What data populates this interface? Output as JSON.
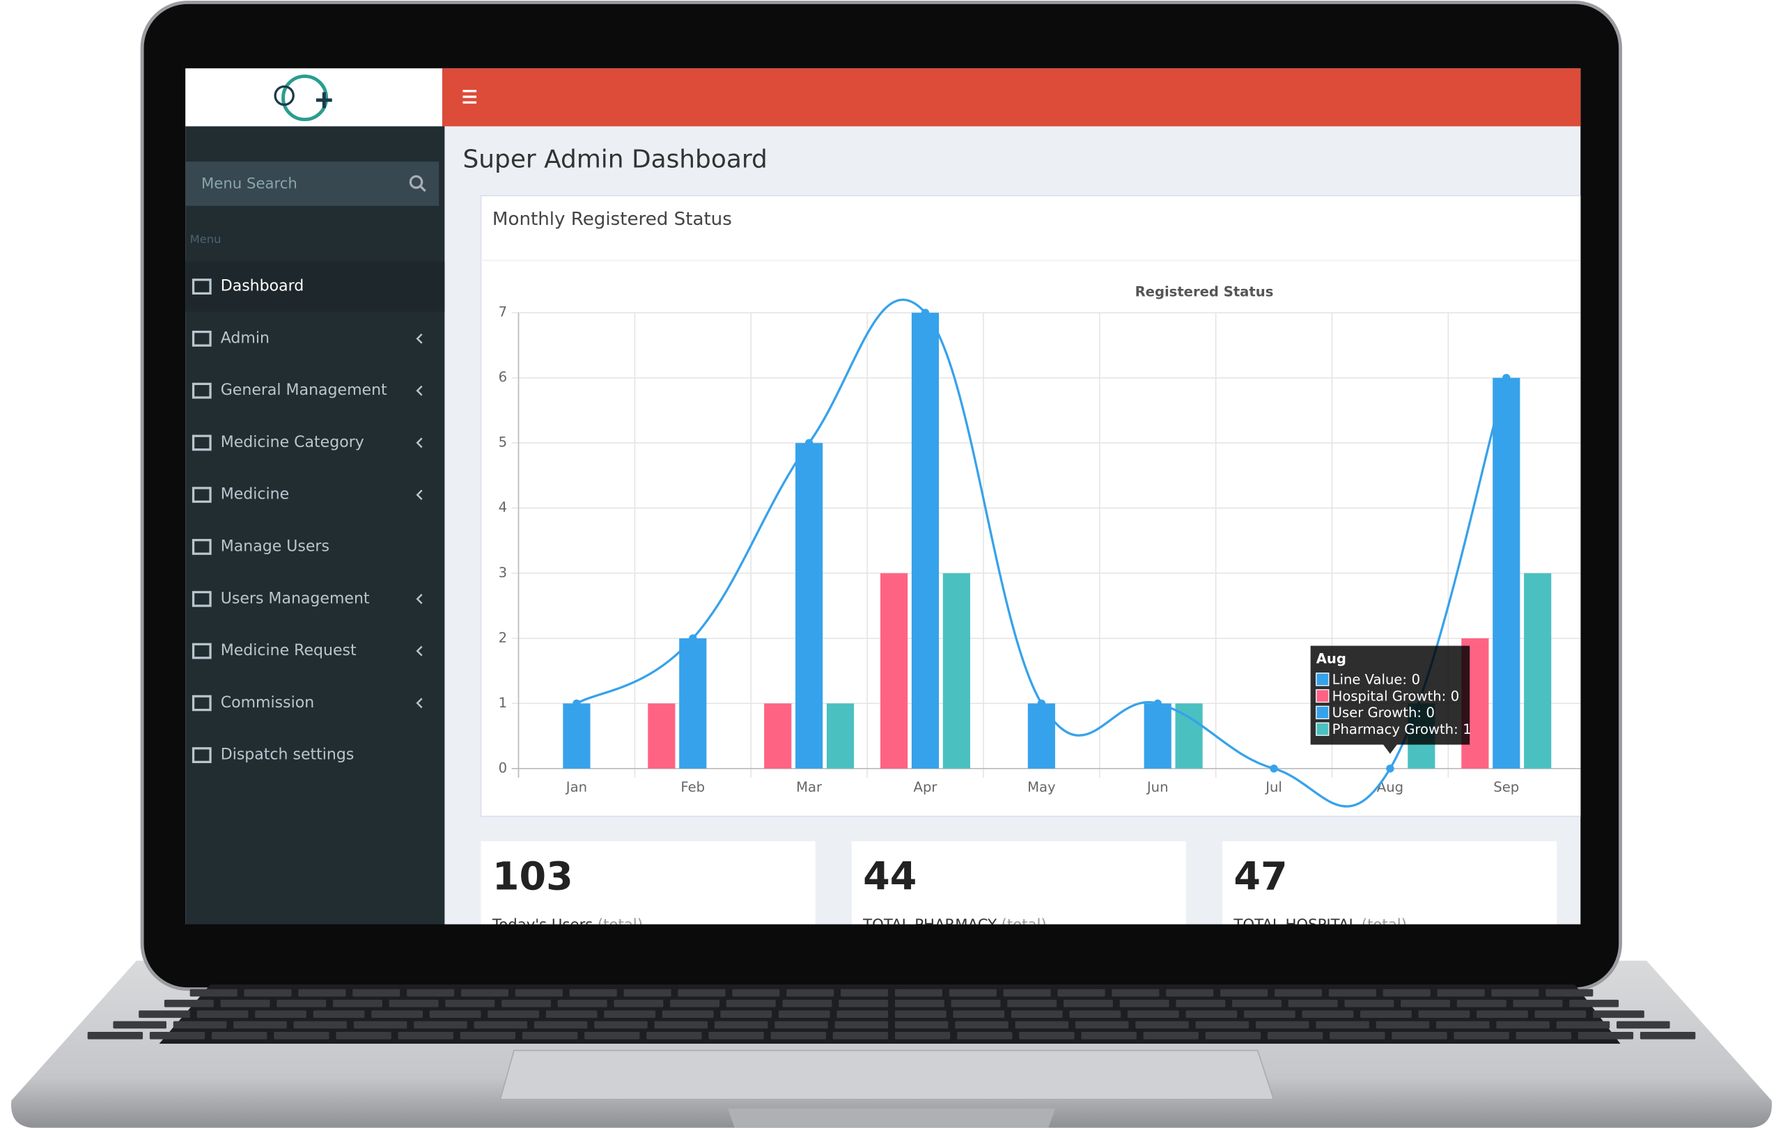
{
  "sidebar": {
    "search_placeholder": "Menu Search",
    "section": "Menu",
    "items": [
      {
        "label": "Dashboard",
        "submenu": false,
        "active": true
      },
      {
        "label": "Admin",
        "submenu": true,
        "active": false
      },
      {
        "label": "General Management",
        "submenu": true,
        "active": false
      },
      {
        "label": "Medicine Category",
        "submenu": true,
        "active": false
      },
      {
        "label": "Medicine",
        "submenu": true,
        "active": false
      },
      {
        "label": "Manage Users",
        "submenu": false,
        "active": false
      },
      {
        "label": "Users Management",
        "submenu": true,
        "active": false
      },
      {
        "label": "Medicine Request",
        "submenu": true,
        "active": false
      },
      {
        "label": "Commission",
        "submenu": true,
        "active": false
      },
      {
        "label": "Dispatch settings",
        "submenu": false,
        "active": false
      }
    ]
  },
  "header": {
    "title": "Super Admin Dashboard"
  },
  "panel": {
    "title": "Monthly Registered Status"
  },
  "chart_data": {
    "type": "bar",
    "title": "Registered Status",
    "categories": [
      "Jan",
      "Feb",
      "Mar",
      "Apr",
      "May",
      "Jun",
      "Jul",
      "Aug",
      "Sep"
    ],
    "series": [
      {
        "name": "Line Value",
        "type": "line",
        "color": "#36a2eb",
        "values": [
          1,
          2,
          5,
          7,
          1,
          1,
          0,
          0,
          6
        ]
      },
      {
        "name": "Hospital Growth",
        "color": "#ff6384",
        "values": [
          0,
          1,
          1,
          3,
          0,
          0,
          0,
          0,
          2
        ]
      },
      {
        "name": "User Growth",
        "color": "#36a2eb",
        "values": [
          1,
          2,
          5,
          7,
          1,
          1,
          0,
          0,
          6
        ]
      },
      {
        "name": "Pharmacy Growth",
        "color": "#4bc0c0",
        "values": [
          0,
          0,
          1,
          3,
          0,
          1,
          0,
          1,
          3
        ]
      }
    ],
    "ylim": [
      0,
      7
    ],
    "yticks": [
      0,
      1,
      2,
      3,
      4,
      5,
      6,
      7
    ],
    "grid": true,
    "tooltip": {
      "category": "Aug",
      "separator": ":"
    }
  },
  "cards": [
    {
      "value": 103,
      "label": "Today's Users",
      "note": "(total)"
    },
    {
      "value": 44,
      "label": "TOTAL PHARMACY",
      "note": "(total)"
    },
    {
      "value": 47,
      "label": "TOTAL HOSPITAL",
      "note": "(total)"
    }
  ]
}
